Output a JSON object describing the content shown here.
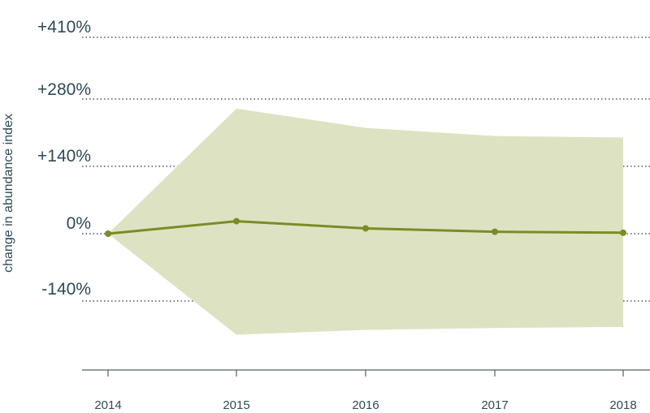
{
  "chart_data": {
    "type": "line",
    "title": "",
    "xlabel": "",
    "ylabel": "change in abundance index",
    "x": [
      2014,
      2015,
      2016,
      2017,
      2018
    ],
    "x_tick_labels": [
      "2014",
      "2015",
      "2016",
      "2017",
      "2018"
    ],
    "y_ticks": [
      -140,
      0,
      140,
      280,
      410
    ],
    "y_tick_labels": [
      "-140%",
      "0%",
      "+140%",
      "+280%",
      "+410%"
    ],
    "ylim": [
      -280,
      450
    ],
    "series": [
      {
        "values": [
          0,
          26,
          11,
          4,
          2
        ],
        "color": "#7b8c25"
      }
    ],
    "confidence_band": {
      "lower": [
        0,
        -210,
        -200,
        -196,
        -194
      ],
      "upper": [
        0,
        260,
        220,
        203,
        200
      ],
      "color": "#dde3c2"
    },
    "grid": "horizontal-dotted",
    "legend": "none"
  },
  "colors": {
    "axis_text": "#2e4a57",
    "axis_line": "#4f5f66",
    "grid": "#333333"
  }
}
